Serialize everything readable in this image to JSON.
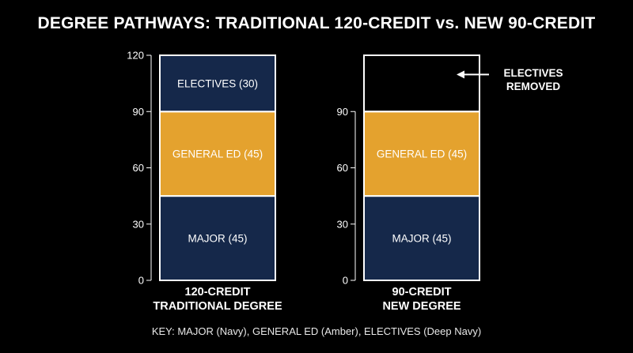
{
  "title": "DEGREE PATHWAYS: TRADITIONAL 120-CREDIT vs. NEW 90-CREDIT",
  "key": "KEY: MAJOR (Navy), GENERAL ED (Amber), ELECTIVES (Deep Navy)",
  "colors": {
    "major": "#15284a",
    "general_ed": "#e4a22e",
    "electives": "#15284a",
    "background": "#000000",
    "outline": "#ffffff"
  },
  "chart_data": [
    {
      "type": "bar",
      "stacked": true,
      "category": "120-CREDIT TRADITIONAL DEGREE",
      "category_lines": [
        "120-CREDIT",
        "TRADITIONAL DEGREE"
      ],
      "ylim": [
        0,
        120
      ],
      "yticks": [
        0,
        30,
        60,
        90,
        120
      ],
      "segments": [
        {
          "key": "major",
          "label": "MAJOR (45)",
          "value": 45
        },
        {
          "key": "general_ed",
          "label": "GENERAL ED (45)",
          "value": 45
        },
        {
          "key": "electives",
          "label": "ELECTIVES (30)",
          "value": 30
        }
      ],
      "annotation": null
    },
    {
      "type": "bar",
      "stacked": true,
      "category": "90-CREDIT NEW DEGREE",
      "category_lines": [
        "90-CREDIT",
        "NEW DEGREE"
      ],
      "ylim": [
        0,
        120
      ],
      "yticks": [
        0,
        30,
        60,
        90
      ],
      "segments": [
        {
          "key": "major",
          "label": "MAJOR (45)",
          "value": 45
        },
        {
          "key": "general_ed",
          "label": "GENERAL ED (45)",
          "value": 45
        }
      ],
      "removed_outline_value": 30,
      "annotation": {
        "lines": [
          "ELECTIVES",
          "REMOVED"
        ]
      }
    }
  ]
}
